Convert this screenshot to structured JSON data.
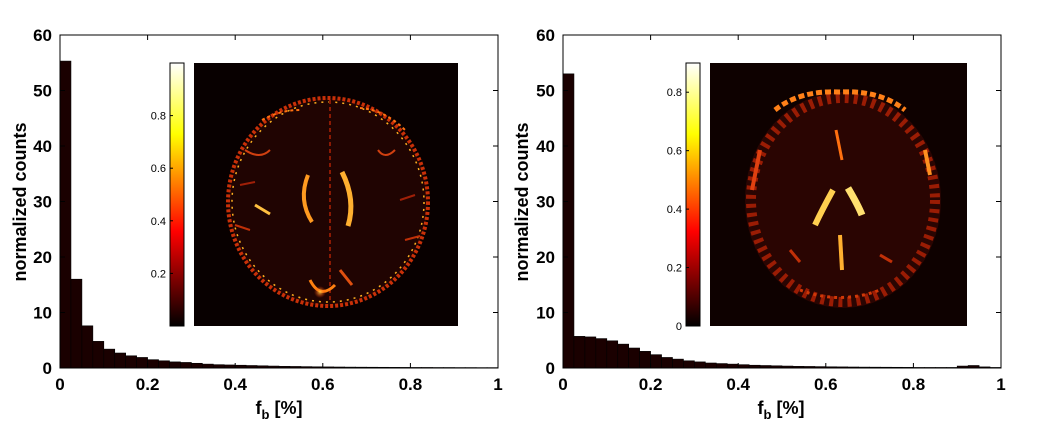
{
  "chart_data": [
    {
      "type": "bar",
      "panel": "left",
      "xlabel_main": "f",
      "xlabel_sub": "b",
      "xlabel_unit": "[%]",
      "ylabel": "normalized counts",
      "xlim": [
        0,
        1
      ],
      "ylim": [
        0,
        60
      ],
      "xticks": [
        "0",
        "0.2",
        "0.4",
        "0.6",
        "0.8",
        "1"
      ],
      "yticks": [
        "0",
        "10",
        "20",
        "30",
        "40",
        "50",
        "60"
      ],
      "bin_width": 0.025,
      "values": [
        55.3,
        16.0,
        7.6,
        4.8,
        3.4,
        2.7,
        2.2,
        1.9,
        1.5,
        1.3,
        1.1,
        1.0,
        0.85,
        0.7,
        0.6,
        0.55,
        0.5,
        0.45,
        0.4,
        0.35,
        0.3,
        0.28,
        0.25,
        0.22,
        0.2,
        0.18,
        0.16,
        0.15,
        0.14,
        0.13,
        0.12,
        0.11,
        0.1,
        0.1,
        0.09,
        0.09,
        0.08,
        0.08,
        0.07,
        0.07
      ],
      "inset": {
        "colormap": "hot",
        "colorbar_ticks": [
          "0.2",
          "0.4",
          "0.6",
          "0.8"
        ],
        "colorbar_range": [
          0,
          1
        ]
      }
    },
    {
      "type": "bar",
      "panel": "right",
      "xlabel_main": "f",
      "xlabel_sub": "b",
      "xlabel_unit": "[%]",
      "ylabel": "normalized counts",
      "xlim": [
        0,
        1
      ],
      "ylim": [
        0,
        60
      ],
      "xticks": [
        "0",
        "0.2",
        "0.4",
        "0.6",
        "0.8",
        "1"
      ],
      "yticks": [
        "0",
        "10",
        "20",
        "30",
        "40",
        "50",
        "60"
      ],
      "bin_width": 0.025,
      "values": [
        53.0,
        5.7,
        5.6,
        5.3,
        4.9,
        4.3,
        3.6,
        3.0,
        2.4,
        1.9,
        1.6,
        1.3,
        1.1,
        0.9,
        0.8,
        0.7,
        0.6,
        0.5,
        0.45,
        0.4,
        0.35,
        0.3,
        0.28,
        0.25,
        0.22,
        0.2,
        0.18,
        0.16,
        0.15,
        0.14,
        0.13,
        0.12,
        0.1,
        0.1,
        0.1,
        0.1,
        0.35,
        0.45,
        0.2,
        0.1
      ],
      "inset": {
        "colormap": "hot",
        "colorbar_ticks": [
          "0",
          "0.2",
          "0.4",
          "0.6",
          "0.8"
        ],
        "colorbar_range": [
          0,
          0.9
        ]
      }
    }
  ]
}
